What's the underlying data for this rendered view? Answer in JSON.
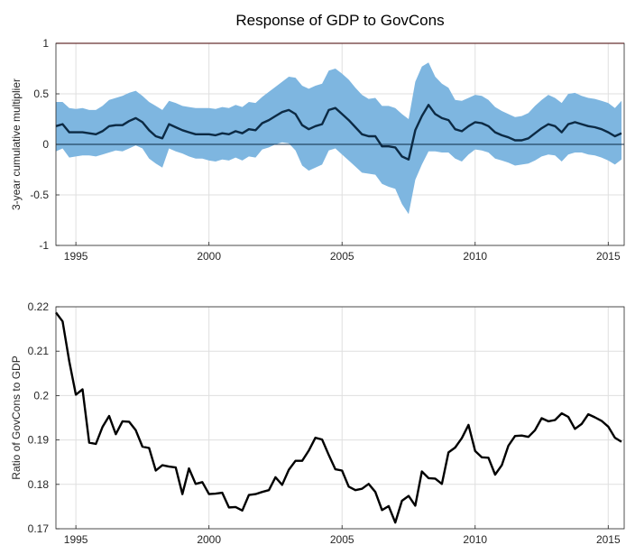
{
  "chart_data": [
    {
      "type": "line",
      "title": "Response of GDP to GovCons",
      "ylabel": "3-year cumulative multiplier",
      "xlabel": "",
      "xlim": [
        1994.25,
        2015.6
      ],
      "ylim": [
        -1,
        1
      ],
      "xticks": [
        1995,
        2000,
        2005,
        2010,
        2015
      ],
      "xtick_labels": [
        "1995",
        "2000",
        "2005",
        "2010",
        "2015"
      ],
      "yticks": [
        -1,
        -0.5,
        0,
        0.5,
        1
      ],
      "ytick_labels": [
        "-1",
        "-0.5",
        "0",
        "0.5",
        "1"
      ],
      "grid": true,
      "colors": {
        "band": "#7eb6e0",
        "line": "#0c2a44",
        "ref_line": "#e04848",
        "zero_line": "#0c2a44"
      },
      "reference_lines": [
        1,
        0
      ],
      "x": [
        1994.25,
        1994.5,
        1994.75,
        1995,
        1995.25,
        1995.5,
        1995.75,
        1996,
        1996.25,
        1996.5,
        1996.75,
        1997,
        1997.25,
        1997.5,
        1997.75,
        1998,
        1998.25,
        1998.5,
        1998.75,
        1999,
        1999.25,
        1999.5,
        1999.75,
        2000,
        2000.25,
        2000.5,
        2000.75,
        2001,
        2001.25,
        2001.5,
        2001.75,
        2002,
        2002.25,
        2002.5,
        2002.75,
        2003,
        2003.25,
        2003.5,
        2003.75,
        2004,
        2004.25,
        2004.5,
        2004.75,
        2005,
        2005.25,
        2005.5,
        2005.75,
        2006,
        2006.25,
        2006.5,
        2006.75,
        2007,
        2007.25,
        2007.5,
        2007.75,
        2008,
        2008.25,
        2008.5,
        2008.75,
        2009,
        2009.25,
        2009.5,
        2009.75,
        2010,
        2010.25,
        2010.5,
        2010.75,
        2011,
        2011.25,
        2011.5,
        2011.75,
        2012,
        2012.25,
        2012.5,
        2012.75,
        2013,
        2013.25,
        2013.5,
        2013.75,
        2014,
        2014.25,
        2014.5,
        2014.75,
        2015,
        2015.25,
        2015.5
      ],
      "series": [
        {
          "role": "median",
          "values": [
            0.18,
            0.2,
            0.12,
            0.12,
            0.12,
            0.11,
            0.1,
            0.13,
            0.18,
            0.19,
            0.19,
            0.23,
            0.26,
            0.22,
            0.14,
            0.08,
            0.06,
            0.2,
            0.17,
            0.14,
            0.12,
            0.1,
            0.1,
            0.1,
            0.09,
            0.11,
            0.1,
            0.13,
            0.11,
            0.15,
            0.14,
            0.21,
            0.24,
            0.28,
            0.32,
            0.34,
            0.3,
            0.19,
            0.15,
            0.18,
            0.2,
            0.34,
            0.36,
            0.3,
            0.24,
            0.17,
            0.1,
            0.08,
            0.08,
            -0.02,
            -0.02,
            -0.03,
            -0.12,
            -0.15,
            0.14,
            0.28,
            0.39,
            0.3,
            0.26,
            0.24,
            0.15,
            0.13,
            0.18,
            0.22,
            0.21,
            0.18,
            0.12,
            0.09,
            0.07,
            0.04,
            0.04,
            0.06,
            0.11,
            0.16,
            0.2,
            0.18,
            0.12,
            0.2,
            0.22,
            0.2,
            0.18,
            0.17,
            0.15,
            0.12,
            0.08,
            0.11
          ]
        },
        {
          "role": "upper",
          "values": [
            0.42,
            0.42,
            0.36,
            0.35,
            0.36,
            0.34,
            0.34,
            0.38,
            0.44,
            0.46,
            0.48,
            0.51,
            0.53,
            0.48,
            0.42,
            0.38,
            0.34,
            0.43,
            0.41,
            0.38,
            0.37,
            0.36,
            0.36,
            0.36,
            0.35,
            0.37,
            0.36,
            0.39,
            0.37,
            0.42,
            0.41,
            0.47,
            0.52,
            0.57,
            0.62,
            0.67,
            0.66,
            0.58,
            0.55,
            0.58,
            0.6,
            0.73,
            0.75,
            0.7,
            0.64,
            0.56,
            0.49,
            0.45,
            0.46,
            0.38,
            0.38,
            0.36,
            0.3,
            0.25,
            0.62,
            0.77,
            0.81,
            0.67,
            0.6,
            0.56,
            0.44,
            0.43,
            0.46,
            0.49,
            0.48,
            0.44,
            0.37,
            0.33,
            0.3,
            0.27,
            0.28,
            0.31,
            0.38,
            0.44,
            0.49,
            0.46,
            0.41,
            0.5,
            0.51,
            0.48,
            0.46,
            0.45,
            0.43,
            0.41,
            0.36,
            0.43
          ]
        },
        {
          "role": "lower",
          "values": [
            -0.07,
            -0.04,
            -0.13,
            -0.12,
            -0.11,
            -0.11,
            -0.12,
            -0.1,
            -0.08,
            -0.06,
            -0.07,
            -0.04,
            -0.01,
            -0.04,
            -0.14,
            -0.19,
            -0.23,
            -0.04,
            -0.07,
            -0.09,
            -0.12,
            -0.14,
            -0.14,
            -0.16,
            -0.17,
            -0.15,
            -0.16,
            -0.13,
            -0.16,
            -0.12,
            -0.13,
            -0.05,
            -0.03,
            0.0,
            0.02,
            0.01,
            -0.06,
            -0.21,
            -0.26,
            -0.23,
            -0.2,
            -0.06,
            -0.04,
            -0.1,
            -0.16,
            -0.22,
            -0.28,
            -0.29,
            -0.3,
            -0.39,
            -0.42,
            -0.44,
            -0.59,
            -0.69,
            -0.35,
            -0.2,
            -0.07,
            -0.07,
            -0.08,
            -0.08,
            -0.14,
            -0.17,
            -0.1,
            -0.05,
            -0.06,
            -0.08,
            -0.14,
            -0.16,
            -0.18,
            -0.21,
            -0.2,
            -0.19,
            -0.16,
            -0.12,
            -0.1,
            -0.11,
            -0.17,
            -0.1,
            -0.08,
            -0.08,
            -0.1,
            -0.11,
            -0.13,
            -0.16,
            -0.2,
            -0.15
          ]
        }
      ]
    },
    {
      "type": "line",
      "title": "",
      "ylabel": "Ratio of GovCons to GDP",
      "xlabel": "",
      "xlim": [
        1994.25,
        2015.6
      ],
      "ylim": [
        0.17,
        0.22
      ],
      "xticks": [
        1995,
        2000,
        2005,
        2010,
        2015
      ],
      "xtick_labels": [
        "1995",
        "2000",
        "2005",
        "2010",
        "2015"
      ],
      "yticks": [
        0.17,
        0.18,
        0.19,
        0.2,
        0.21,
        0.22
      ],
      "ytick_labels": [
        "0.17",
        "0.18",
        "0.19",
        "0.2",
        "0.21",
        "0.22"
      ],
      "grid": true,
      "colors": {
        "line": "#000000"
      },
      "x": [
        1994.25,
        1994.5,
        1994.75,
        1995,
        1995.25,
        1995.5,
        1995.75,
        1996,
        1996.25,
        1996.5,
        1996.75,
        1997,
        1997.25,
        1997.5,
        1997.75,
        1998,
        1998.25,
        1998.5,
        1998.75,
        1999,
        1999.25,
        1999.5,
        1999.75,
        2000,
        2000.25,
        2000.5,
        2000.75,
        2001,
        2001.25,
        2001.5,
        2001.75,
        2002,
        2002.25,
        2002.5,
        2002.75,
        2003,
        2003.25,
        2003.5,
        2003.75,
        2004,
        2004.25,
        2004.5,
        2004.75,
        2005,
        2005.25,
        2005.5,
        2005.75,
        2006,
        2006.25,
        2006.5,
        2006.75,
        2007,
        2007.25,
        2007.5,
        2007.75,
        2008,
        2008.25,
        2008.5,
        2008.75,
        2009,
        2009.25,
        2009.5,
        2009.75,
        2010,
        2010.25,
        2010.5,
        2010.75,
        2011,
        2011.25,
        2011.5,
        2011.75,
        2012,
        2012.25,
        2012.5,
        2012.75,
        2013,
        2013.25,
        2013.5,
        2013.75,
        2014,
        2014.25,
        2014.5,
        2014.75,
        2015,
        2015.25,
        2015.5
      ],
      "series": [
        {
          "values": [
            0.2187,
            0.2167,
            0.2077,
            0.2002,
            0.2014,
            0.1894,
            0.1891,
            0.1929,
            0.1954,
            0.1913,
            0.1942,
            0.1941,
            0.1922,
            0.1885,
            0.1882,
            0.1831,
            0.1843,
            0.184,
            0.1838,
            0.1778,
            0.1836,
            0.1801,
            0.1805,
            0.1778,
            0.1779,
            0.1781,
            0.1748,
            0.1749,
            0.1741,
            0.1776,
            0.1778,
            0.1783,
            0.1787,
            0.1816,
            0.1799,
            0.1833,
            0.1853,
            0.1853,
            0.1876,
            0.1905,
            0.1901,
            0.1866,
            0.1834,
            0.1831,
            0.1795,
            0.1787,
            0.179,
            0.1801,
            0.1783,
            0.1742,
            0.1751,
            0.1714,
            0.1763,
            0.1774,
            0.1752,
            0.1829,
            0.1814,
            0.1813,
            0.1801,
            0.1872,
            0.1883,
            0.1904,
            0.1934,
            0.1875,
            0.1861,
            0.186,
            0.1822,
            0.1843,
            0.1887,
            0.1909,
            0.191,
            0.1907,
            0.1922,
            0.1949,
            0.1942,
            0.1945,
            0.196,
            0.1952,
            0.1925,
            0.1936,
            0.1958,
            0.1951,
            0.1943,
            0.193,
            0.1905,
            0.1896
          ]
        }
      ]
    }
  ]
}
